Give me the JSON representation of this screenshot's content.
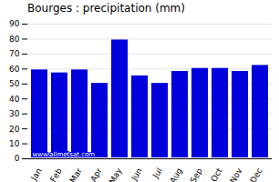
{
  "chart_data": {
    "type": "bar",
    "title": "Bourges : precipitation (mm)",
    "categories": [
      "Jan",
      "Feb",
      "Mar",
      "Apr",
      "May",
      "Jun",
      "Jul",
      "Aug",
      "Sep",
      "Oct",
      "Nov",
      "Dec"
    ],
    "values": [
      60,
      58,
      60,
      51,
      80,
      56,
      51,
      59,
      61,
      61,
      59,
      63
    ],
    "color": "#0000dd",
    "ylim": [
      0,
      90
    ],
    "yticks": [
      0,
      10,
      20,
      30,
      40,
      50,
      60,
      70,
      80,
      90
    ],
    "grid": true,
    "annotation": "www.allmetsat.com"
  }
}
